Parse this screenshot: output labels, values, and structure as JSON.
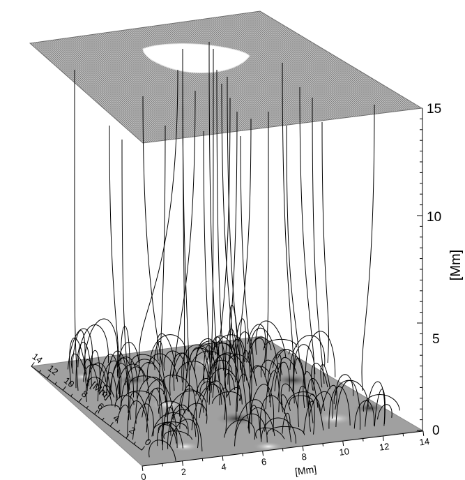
{
  "figure": {
    "vertical_axis": {
      "label": "[Mm]",
      "ticks": [
        "0",
        "5",
        "10",
        "15"
      ],
      "range": [
        0,
        15
      ]
    },
    "x_axis": {
      "label": "[Mm]",
      "ticks": [
        "0",
        "2",
        "4",
        "6",
        "8",
        "10",
        "12",
        "14"
      ],
      "range": [
        0,
        14
      ]
    },
    "y_axis": {
      "label": "[Mm]",
      "ticks": [
        "0",
        "2",
        "4",
        "6",
        "8",
        "10",
        "12",
        "14"
      ],
      "range": [
        0,
        14
      ]
    },
    "surfaces": {
      "bottom": "photospheric magnetogram (gray shaded)",
      "top": "upper boundary plane at 15 Mm (gray mesh) with white patch"
    },
    "colors": {
      "bottom_plane": "#9e9e9e",
      "top_plane": "#b4b4b4",
      "top_patch": "#ffffff",
      "lines": "#000000"
    }
  }
}
